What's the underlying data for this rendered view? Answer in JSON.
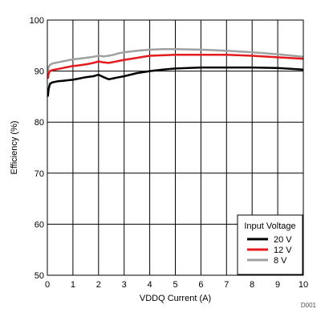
{
  "chart_data": {
    "type": "line",
    "xlabel": "VDDQ Current (A)",
    "ylabel": "Efficiency (%)",
    "xlim": [
      0,
      10
    ],
    "ylim": [
      50,
      100
    ],
    "xticks": [
      0,
      1,
      2,
      3,
      4,
      5,
      6,
      7,
      8,
      9,
      10
    ],
    "yticks": [
      50,
      60,
      70,
      80,
      90,
      100
    ],
    "grid": true,
    "legend": {
      "title": "Input Voltage",
      "placement": "bottom-right"
    },
    "footnote": "D001",
    "series": [
      {
        "name": "20 V",
        "color": "#000000",
        "x": [
          0.02,
          0.05,
          0.1,
          0.2,
          0.4,
          0.6,
          0.8,
          1.0,
          1.2,
          1.5,
          1.8,
          2.0,
          2.2,
          2.4,
          2.6,
          2.8,
          3.0,
          3.5,
          4.0,
          4.5,
          5.0,
          6.0,
          7.0,
          8.0,
          9.0,
          10.0
        ],
        "y": [
          85.0,
          86.5,
          87.5,
          87.8,
          88.0,
          88.1,
          88.2,
          88.3,
          88.5,
          88.8,
          89.0,
          89.3,
          88.8,
          88.4,
          88.6,
          88.8,
          89.0,
          89.6,
          90.0,
          90.3,
          90.5,
          90.7,
          90.7,
          90.7,
          90.6,
          90.3
        ]
      },
      {
        "name": "12 V",
        "color": "#e41a1c",
        "x": [
          0.02,
          0.05,
          0.1,
          0.2,
          0.4,
          0.6,
          0.8,
          1.0,
          1.2,
          1.5,
          1.8,
          2.0,
          2.2,
          2.4,
          2.6,
          2.8,
          3.0,
          3.5,
          4.0,
          4.5,
          5.0,
          6.0,
          7.0,
          8.0,
          9.0,
          10.0
        ],
        "y": [
          88.5,
          89.5,
          90.0,
          90.2,
          90.4,
          90.6,
          90.8,
          91.0,
          91.1,
          91.3,
          91.6,
          91.9,
          91.7,
          91.6,
          91.8,
          92.0,
          92.2,
          92.6,
          93.0,
          93.1,
          93.2,
          93.2,
          93.2,
          93.0,
          92.7,
          92.4
        ]
      },
      {
        "name": "8 V",
        "color": "#a0a0a0",
        "x": [
          0.02,
          0.05,
          0.1,
          0.2,
          0.4,
          0.6,
          0.8,
          1.0,
          1.2,
          1.5,
          1.8,
          2.0,
          2.2,
          2.4,
          2.6,
          2.8,
          3.0,
          3.5,
          4.0,
          4.5,
          5.0,
          6.0,
          7.0,
          8.0,
          9.0,
          10.0
        ],
        "y": [
          90.0,
          90.8,
          91.2,
          91.5,
          91.7,
          91.9,
          92.1,
          92.3,
          92.4,
          92.6,
          92.8,
          93.0,
          92.9,
          93.0,
          93.2,
          93.5,
          93.7,
          94.0,
          94.2,
          94.3,
          94.3,
          94.2,
          94.0,
          93.7,
          93.3,
          92.8
        ]
      }
    ]
  }
}
